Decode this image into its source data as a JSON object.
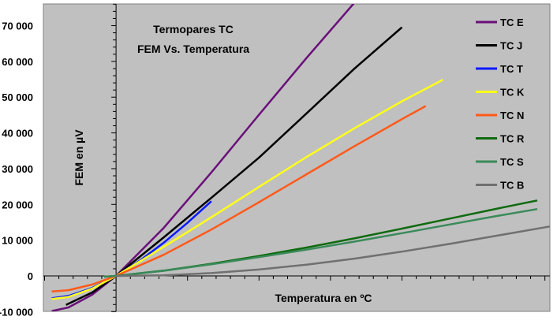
{
  "chart_data": {
    "type": "line",
    "title": [
      "Termopares TC",
      "FEM Vs. Temperatura"
    ],
    "xlabel": "Temperatura en ºC",
    "ylabel": "FEM en µV",
    "xlim": [
      -305,
      1821
    ],
    "ylim": [
      -9920,
      76070
    ],
    "y_ticks": [
      -10000,
      0,
      10000,
      20000,
      30000,
      40000,
      50000,
      60000,
      70000
    ],
    "y_tick_labels": [
      "-10 000",
      "0",
      "10 000",
      "20 000",
      "30 000",
      "40 000",
      "50 000",
      "60 000",
      "70 000"
    ],
    "grid": false,
    "legend_position": "top-right",
    "background": "#c0c0c0",
    "series": [
      {
        "name": "TC E",
        "color": "#6a0f7a",
        "x": [
          -270,
          -200,
          -100,
          0,
          200,
          400,
          600,
          800,
          1000
        ],
        "y": [
          -9835,
          -8825,
          -5237,
          0,
          13421,
          28946,
          45093,
          61017,
          76373
        ]
      },
      {
        "name": "TC J",
        "color": "#000000",
        "x": [
          -210,
          -100,
          0,
          200,
          400,
          600,
          800,
          1000,
          1200
        ],
        "y": [
          -8095,
          -4633,
          0,
          10779,
          21848,
          33102,
          45494,
          57953,
          69553
        ]
      },
      {
        "name": "TC T",
        "color": "#0a1aff",
        "x": [
          -270,
          -200,
          -100,
          0,
          100,
          200,
          300,
          400
        ],
        "y": [
          -6258,
          -5603,
          -3379,
          0,
          4279,
          9288,
          14862,
          20872
        ]
      },
      {
        "name": "TC K",
        "color": "#ffff1a",
        "x": [
          -270,
          -200,
          -100,
          0,
          200,
          400,
          600,
          800,
          1000,
          1200,
          1372
        ],
        "y": [
          -6458,
          -5891,
          -3554,
          0,
          8138,
          16397,
          24905,
          33275,
          41276,
          48838,
          54886
        ]
      },
      {
        "name": "TC N",
        "color": "#ff5a1a",
        "x": [
          -270,
          -200,
          -100,
          0,
          200,
          400,
          600,
          800,
          1000,
          1200,
          1300
        ],
        "y": [
          -4345,
          -3990,
          -2407,
          0,
          5913,
          12974,
          20613,
          28455,
          36256,
          43846,
          47513
        ]
      },
      {
        "name": "TC R",
        "color": "#0f6a0f",
        "x": [
          -50,
          0,
          200,
          400,
          600,
          800,
          1000,
          1200,
          1400,
          1600,
          1768
        ],
        "y": [
          -226,
          0,
          1469,
          3408,
          5583,
          7950,
          10506,
          13228,
          16035,
          18842,
          21101
        ]
      },
      {
        "name": "TC S",
        "color": "#3a8a5a",
        "x": [
          -50,
          0,
          200,
          400,
          600,
          800,
          1000,
          1200,
          1400,
          1600,
          1768
        ],
        "y": [
          -236,
          0,
          1441,
          3259,
          5239,
          7345,
          9587,
          11951,
          14373,
          16777,
          18693
        ]
      },
      {
        "name": "TC B",
        "color": "#707070",
        "x": [
          0,
          200,
          400,
          600,
          800,
          1000,
          1200,
          1400,
          1600,
          1820
        ],
        "y": [
          0,
          178,
          787,
          1792,
          3154,
          4834,
          6786,
          8956,
          11263,
          13820
        ]
      }
    ]
  }
}
